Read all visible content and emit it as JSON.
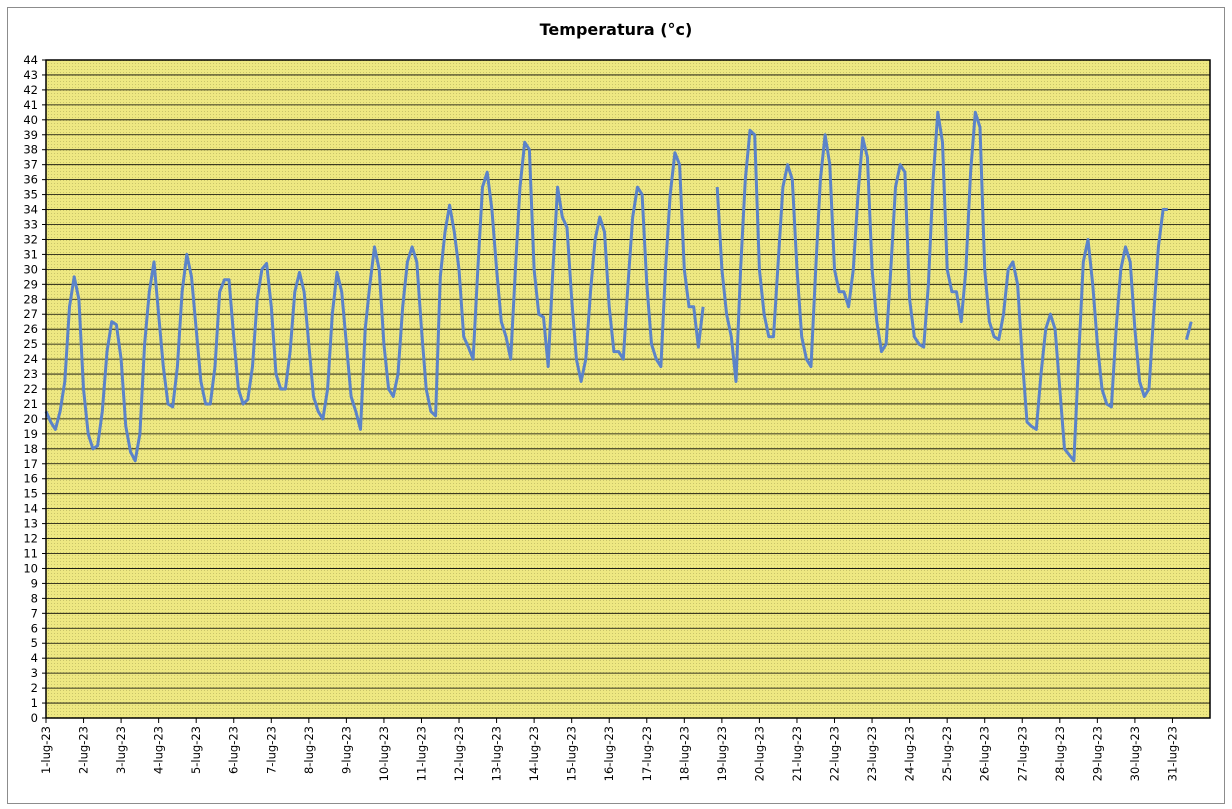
{
  "chart_data": {
    "type": "line",
    "title": "Temperatura (°c)",
    "xlabel": "",
    "ylabel": "",
    "ylim": [
      0,
      44
    ],
    "y_tick_step": 1,
    "grid": true,
    "legend": "none",
    "colors": {
      "plot_bg": "#EEE882",
      "line": "#5B83C9",
      "grid": "#000000",
      "border": "#000000"
    },
    "categories": [
      "1-lug-23",
      "2-lug-23",
      "3-lug-23",
      "4-lug-23",
      "5-lug-23",
      "6-lug-23",
      "7-lug-23",
      "8-lug-23",
      "9-lug-23",
      "10-lug-23",
      "11-lug-23",
      "12-lug-23",
      "13-lug-23",
      "14-lug-23",
      "15-lug-23",
      "16-lug-23",
      "17-lug-23",
      "18-lug-23",
      "19-lug-23",
      "20-lug-23",
      "21-lug-23",
      "22-lug-23",
      "23-lug-23",
      "24-lug-23",
      "25-lug-23",
      "26-lug-23",
      "27-lug-23",
      "28-lug-23",
      "29-lug-23",
      "30-lug-23",
      "31-lug-23"
    ],
    "series": [
      {
        "values_by_day": [
          [
            20.5,
            19.8,
            19.3,
            20.5,
            22.5,
            27.5,
            29.5,
            28.0,
            24.5
          ],
          [
            22.0,
            19.0,
            18.0,
            18.2,
            20.5,
            24.5,
            26.5,
            26.3,
            26.2
          ],
          [
            24.0,
            19.5,
            17.8,
            17.2,
            19.0,
            25.0,
            28.5,
            30.5,
            30.0
          ],
          [
            27.0,
            23.5,
            21.0,
            20.8,
            23.5,
            28.5,
            31.0,
            29.5,
            28.0
          ],
          [
            26.0,
            22.5,
            21.0,
            21.0,
            23.5,
            28.5,
            29.3,
            29.3,
            28.5
          ],
          [
            25.5,
            22.0,
            21.0,
            21.3,
            23.5,
            28.0,
            30.0,
            30.4,
            29.0
          ],
          [
            27.5,
            23.0,
            22.0,
            22.0,
            24.5,
            28.5,
            29.8,
            28.5,
            27.0
          ],
          [
            25.0,
            21.5,
            20.5,
            20.0,
            22.0,
            27.0,
            29.8,
            28.5,
            27.0
          ],
          [
            25.0,
            21.5,
            20.5,
            19.3,
            26.0,
            29.0,
            31.5,
            30.0,
            28.0
          ],
          [
            25.0,
            22.0,
            21.5,
            23.0,
            27.5,
            30.5,
            31.5,
            30.5,
            29.0
          ],
          [
            26.0,
            22.0,
            20.5,
            20.2,
            29.5,
            32.5,
            34.3,
            32.5,
            31.0
          ],
          [
            30.0,
            25.5,
            24.8,
            24.0,
            30.0,
            35.5,
            36.5,
            34.0,
            31.0
          ],
          [
            30.0,
            26.5,
            25.5,
            24.0,
            30.0,
            35.5,
            38.5,
            38.0,
            34.0
          ],
          [
            30.0,
            27.0,
            26.8,
            23.5,
            30.0,
            35.5,
            33.5,
            32.8,
            31.0
          ],
          [
            28.0,
            24.0,
            22.5,
            24.0,
            28.5,
            32.0,
            33.5,
            32.5,
            30.0
          ],
          [
            27.5,
            24.5,
            24.5,
            24.0,
            29.0,
            33.5,
            35.5,
            35.0,
            32.0
          ],
          [
            29.0,
            25.0,
            24.0,
            23.5,
            30.0,
            35.0,
            37.8,
            37.0,
            34.0
          ],
          [
            30.0,
            27.5,
            27.5,
            24.8,
            27.5,
            null,
            null,
            35.5,
            33.5
          ],
          [
            30.0,
            27.0,
            25.5,
            22.5,
            30.0,
            36.0,
            39.3,
            39.0,
            36.5
          ],
          [
            30.0,
            27.0,
            25.5,
            25.5,
            30.5,
            35.5,
            37.0,
            36.0,
            34.5
          ],
          [
            30.0,
            25.5,
            24.0,
            23.5,
            30.0,
            36.0,
            39.0,
            37.0,
            34.0
          ],
          [
            30.0,
            28.5,
            28.5,
            27.5,
            30.0,
            35.0,
            38.8,
            37.5,
            34.0
          ],
          [
            30.0,
            26.5,
            24.5,
            25.0,
            30.0,
            35.5,
            37.0,
            36.5,
            29.5
          ],
          [
            28.0,
            25.5,
            25.0,
            24.8,
            29.0,
            36.0,
            40.5,
            38.5,
            34.0
          ],
          [
            30.0,
            28.5,
            28.5,
            26.5,
            30.0,
            36.5,
            40.5,
            39.5,
            35.0
          ],
          [
            30.0,
            26.5,
            25.5,
            25.3,
            27.0,
            30.0,
            30.5,
            29.0,
            27.0
          ],
          [
            24.0,
            19.8,
            19.5,
            19.3,
            23.0,
            26.0,
            27.0,
            26.0,
            24.0
          ],
          [
            22.0,
            18.0,
            17.6,
            17.2,
            24.0,
            30.5,
            32.0,
            29.0,
            26.5
          ],
          [
            25.0,
            22.0,
            21.0,
            20.8,
            26.0,
            30.0,
            31.5,
            30.5,
            29.0
          ],
          [
            26.0,
            22.5,
            21.5,
            22.0,
            27.0,
            31.5,
            34.0,
            34.0,
            null
          ],
          [
            null,
            null,
            null,
            25.3,
            26.5,
            null,
            null,
            null,
            null
          ]
        ]
      }
    ]
  }
}
